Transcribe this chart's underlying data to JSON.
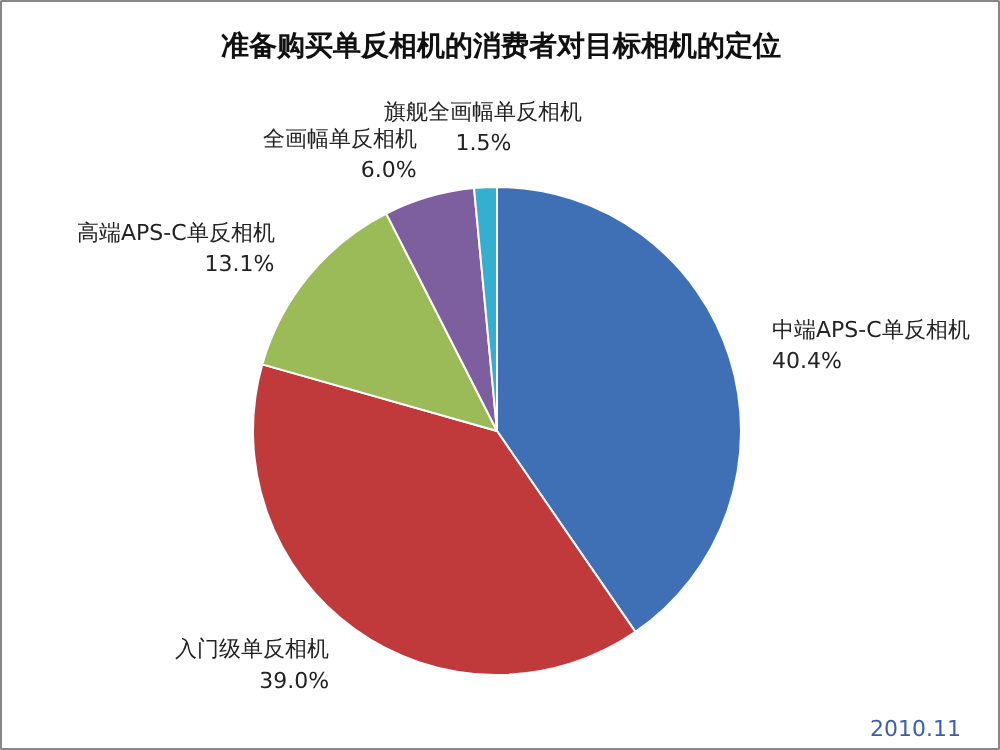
{
  "chart_data": {
    "type": "pie",
    "title": "准备购买单反相机的消费者对目标相机的定位",
    "categories": [
      "中端APS-C单反相机",
      "入门级单反相机",
      "高端APS-C单反相机",
      "全画幅单反相机",
      "旗舰全画幅单反相机"
    ],
    "values": [
      40.4,
      39.0,
      13.1,
      6.0,
      1.5
    ],
    "value_labels": [
      "40.4%",
      "39.0%",
      "13.1%",
      "6.0%",
      "1.5%"
    ],
    "colors": [
      "#3f6fb5",
      "#c0393b",
      "#9bbb59",
      "#7d5fa0",
      "#35afd0"
    ],
    "annotations": [
      "2010.11"
    ]
  }
}
